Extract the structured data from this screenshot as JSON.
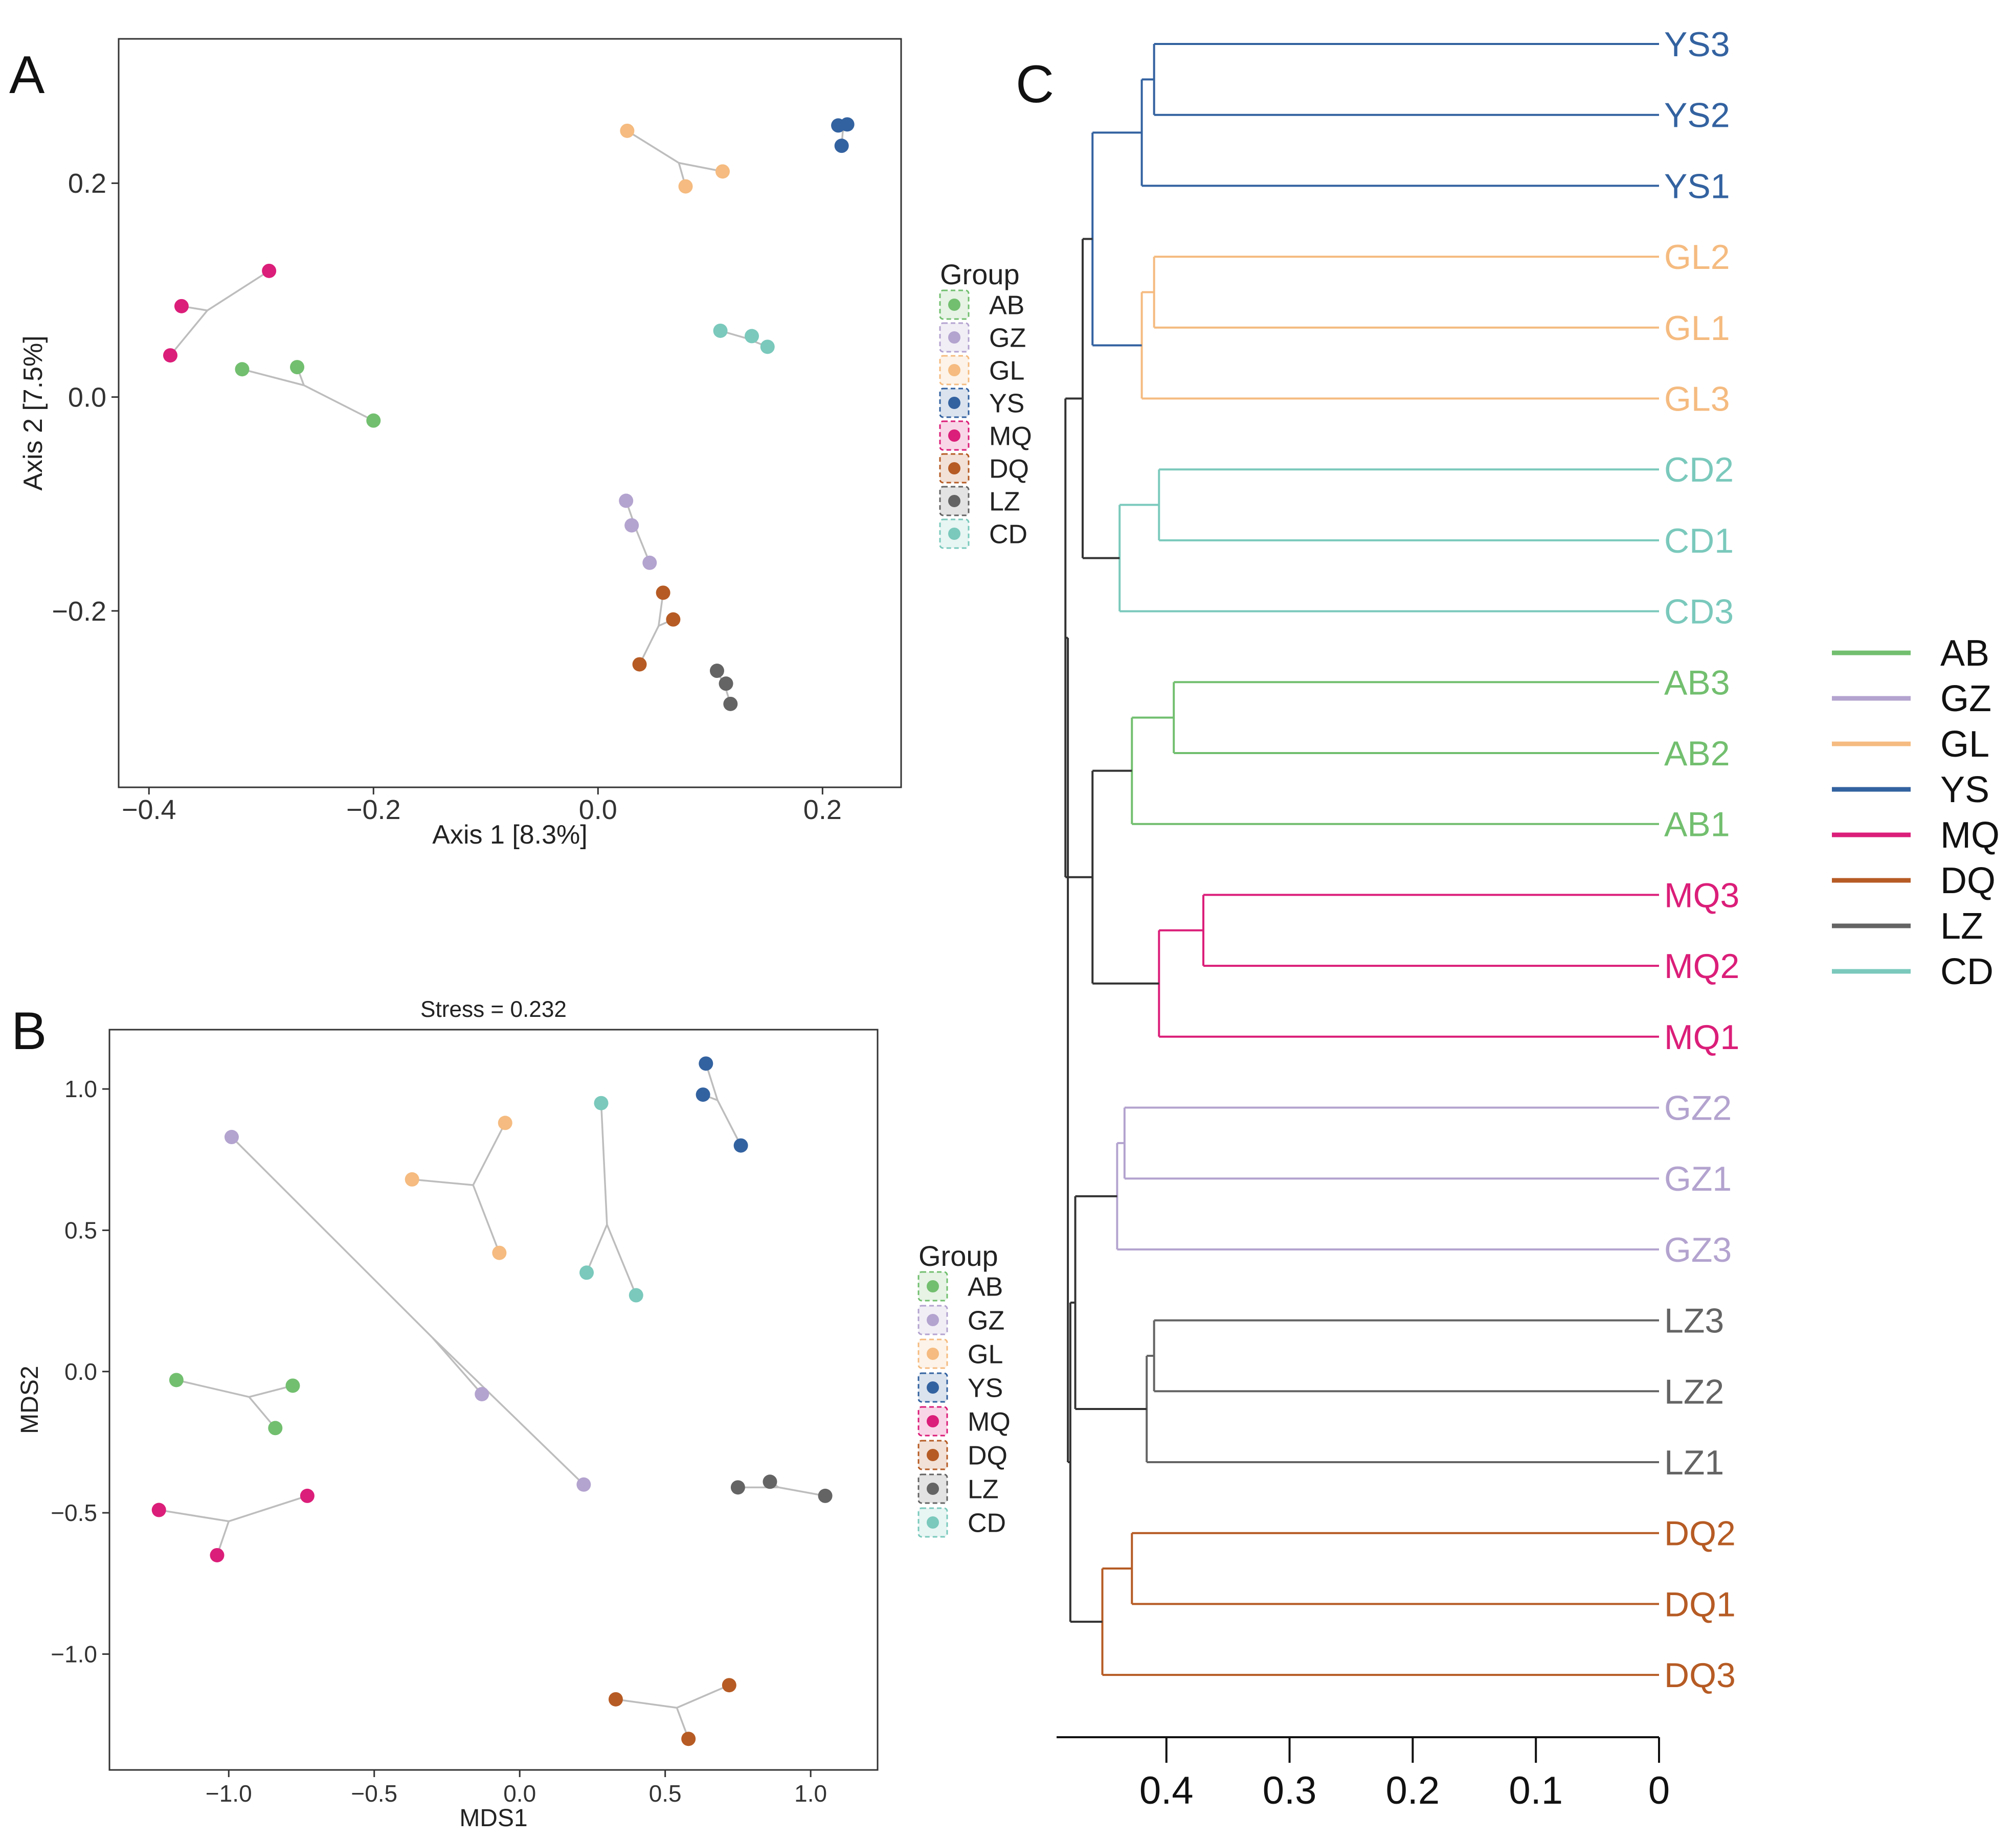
{
  "colors": {
    "AB": "#72bf6f",
    "GZ": "#b3a3cf",
    "GL": "#f5bb80",
    "YS": "#3362a0",
    "MQ": "#db1e79",
    "DQ": "#b65b24",
    "LZ": "#646464",
    "CD": "#7ac9bc",
    "spider": "#bdbdbd",
    "axis": "#333333"
  },
  "chart_data": [
    {
      "panel": "A",
      "type": "scatter",
      "xlabel": "Axis 1 [8.3%]",
      "ylabel": "Axis 2 [7.5%]",
      "xlim": [
        -0.427,
        0.27
      ],
      "ylim": [
        -0.365,
        0.335
      ],
      "xticks": [
        -0.4,
        -0.2,
        0.0,
        0.2
      ],
      "xtick_labels": [
        "−0.4",
        "−0.2",
        "0.0",
        "0.2"
      ],
      "yticks": [
        -0.2,
        0.0,
        0.2
      ],
      "ytick_labels": [
        "−0.2",
        "0.0",
        "0.2"
      ],
      "legend_title": "Group",
      "legend": [
        "AB",
        "GZ",
        "GL",
        "YS",
        "MQ",
        "DQ",
        "LZ",
        "CD"
      ],
      "series": [
        {
          "name": "GL",
          "points": [
            [
              0.026,
              0.249
            ],
            [
              0.111,
              0.211
            ],
            [
              0.078,
              0.197
            ]
          ],
          "centroid": [
            0.072,
            0.219
          ]
        },
        {
          "name": "YS",
          "points": [
            [
              0.214,
              0.254
            ],
            [
              0.222,
              0.255
            ],
            [
              0.217,
              0.235
            ]
          ],
          "centroid": [
            0.218,
            0.248
          ]
        },
        {
          "name": "MQ",
          "points": [
            [
              -0.293,
              0.118
            ],
            [
              -0.371,
              0.085
            ],
            [
              -0.381,
              0.039
            ]
          ],
          "centroid": [
            -0.348,
            0.081
          ]
        },
        {
          "name": "AB",
          "points": [
            [
              -0.317,
              0.026
            ],
            [
              -0.268,
              0.028
            ],
            [
              -0.2,
              -0.022
            ]
          ],
          "centroid": [
            -0.262,
            0.011
          ]
        },
        {
          "name": "CD",
          "points": [
            [
              0.109,
              0.062
            ],
            [
              0.137,
              0.057
            ],
            [
              0.151,
              0.047
            ]
          ],
          "centroid": [
            0.132,
            0.055
          ]
        },
        {
          "name": "GZ",
          "points": [
            [
              0.025,
              -0.097
            ],
            [
              0.03,
              -0.12
            ],
            [
              0.046,
              -0.155
            ]
          ],
          "centroid": [
            0.034,
            -0.124
          ]
        },
        {
          "name": "DQ",
          "points": [
            [
              0.058,
              -0.183
            ],
            [
              0.067,
              -0.208
            ],
            [
              0.037,
              -0.25
            ]
          ],
          "centroid": [
            0.054,
            -0.214
          ]
        },
        {
          "name": "LZ",
          "points": [
            [
              0.106,
              -0.256
            ],
            [
              0.114,
              -0.268
            ],
            [
              0.118,
              -0.287
            ]
          ],
          "centroid": [
            0.113,
            -0.27
          ]
        }
      ]
    },
    {
      "panel": "B",
      "type": "scatter",
      "title": "Stress = 0.232",
      "xlabel": "MDS1",
      "ylabel": "MDS2",
      "xlim": [
        -1.41,
        1.23
      ],
      "ylim": [
        -1.41,
        1.21
      ],
      "xticks": [
        -1.0,
        -0.5,
        0.0,
        0.5,
        1.0
      ],
      "xtick_labels": [
        "−1.0",
        "−0.5",
        "0.0",
        "0.5",
        "1.0"
      ],
      "yticks": [
        -1.0,
        -0.5,
        0.0,
        0.5,
        1.0
      ],
      "ytick_labels": [
        "−1.0",
        "−0.5",
        "0.0",
        "0.5",
        "1.0"
      ],
      "legend_title": "Group",
      "legend": [
        "AB",
        "GZ",
        "GL",
        "YS",
        "MQ",
        "DQ",
        "LZ",
        "CD"
      ],
      "series": [
        {
          "name": "YS",
          "points": [
            [
              0.64,
              1.09
            ],
            [
              0.63,
              0.98
            ],
            [
              0.76,
              0.8
            ]
          ],
          "centroid": [
            0.68,
            0.96
          ]
        },
        {
          "name": "CD",
          "points": [
            [
              0.28,
              0.95
            ],
            [
              0.23,
              0.35
            ],
            [
              0.4,
              0.27
            ]
          ],
          "centroid": [
            0.3,
            0.52
          ]
        },
        {
          "name": "GL",
          "points": [
            [
              -0.05,
              0.88
            ],
            [
              -0.37,
              0.68
            ],
            [
              -0.07,
              0.42
            ]
          ],
          "centroid": [
            -0.16,
            0.66
          ]
        },
        {
          "name": "GZ",
          "points": [
            [
              -0.99,
              0.83
            ],
            [
              -0.13,
              -0.08
            ],
            [
              0.22,
              -0.4
            ]
          ],
          "centroid": [
            -0.3,
            0.12
          ]
        },
        {
          "name": "AB",
          "points": [
            [
              -1.18,
              -0.03
            ],
            [
              -0.78,
              -0.05
            ],
            [
              -0.84,
              -0.2
            ]
          ],
          "centroid": [
            -0.93,
            -0.09
          ]
        },
        {
          "name": "MQ",
          "points": [
            [
              -1.24,
              -0.49
            ],
            [
              -0.73,
              -0.44
            ],
            [
              -1.04,
              -0.65
            ]
          ],
          "centroid": [
            -1.0,
            -0.53
          ]
        },
        {
          "name": "LZ",
          "points": [
            [
              0.75,
              -0.41
            ],
            [
              0.86,
              -0.39
            ],
            [
              1.05,
              -0.44
            ]
          ],
          "centroid": [
            0.89,
            -0.41
          ]
        },
        {
          "name": "DQ",
          "points": [
            [
              0.33,
              -1.16
            ],
            [
              0.72,
              -1.11
            ],
            [
              0.58,
              -1.3
            ]
          ],
          "centroid": [
            0.54,
            -1.19
          ]
        }
      ]
    },
    {
      "panel": "C",
      "type": "dendrogram",
      "xlim": [
        0.49,
        0.0
      ],
      "xticks": [
        0.4,
        0.3,
        0.2,
        0.1,
        0
      ],
      "xtick_labels": [
        "0.4",
        "0.3",
        "0.2",
        "0.1",
        "0"
      ],
      "leaves": [
        "YS3",
        "YS2",
        "YS1",
        "GL2",
        "GL1",
        "GL3",
        "CD2",
        "CD1",
        "CD3",
        "AB3",
        "AB2",
        "AB1",
        "MQ3",
        "MQ2",
        "MQ1",
        "GZ2",
        "GZ1",
        "GZ3",
        "LZ3",
        "LZ2",
        "LZ1",
        "DQ2",
        "DQ1",
        "DQ3"
      ],
      "leaf_groups": [
        "YS",
        "YS",
        "YS",
        "GL",
        "GL",
        "GL",
        "CD",
        "CD",
        "CD",
        "AB",
        "AB",
        "AB",
        "MQ",
        "MQ",
        "MQ",
        "GZ",
        "GZ",
        "GZ",
        "LZ",
        "LZ",
        "LZ",
        "DQ",
        "DQ",
        "DQ"
      ],
      "merges": [
        {
          "a": "YS3",
          "b": "YS2",
          "height": 0.41,
          "id": "y1",
          "color": "YS"
        },
        {
          "a": "y1",
          "b": "YS1",
          "height": 0.42,
          "id": "Y",
          "color": "YS"
        },
        {
          "a": "GL2",
          "b": "GL1",
          "height": 0.41,
          "id": "g1",
          "color": "GL"
        },
        {
          "a": "g1",
          "b": "GL3",
          "height": 0.42,
          "id": "G",
          "color": "GL"
        },
        {
          "a": "Y",
          "b": "G",
          "height": 0.46,
          "id": "YG",
          "color": "YS"
        },
        {
          "a": "CD2",
          "b": "CD1",
          "height": 0.406,
          "id": "c1",
          "color": "CD"
        },
        {
          "a": "c1",
          "b": "CD3",
          "height": 0.438,
          "id": "C",
          "color": "CD"
        },
        {
          "a": "YG",
          "b": "C",
          "height": 0.468,
          "id": "YGC",
          "color": "axis"
        },
        {
          "a": "AB3",
          "b": "AB2",
          "height": 0.394,
          "id": "a1",
          "color": "AB"
        },
        {
          "a": "a1",
          "b": "AB1",
          "height": 0.428,
          "id": "A",
          "color": "AB"
        },
        {
          "a": "MQ3",
          "b": "MQ2",
          "height": 0.37,
          "id": "m1",
          "color": "MQ"
        },
        {
          "a": "m1",
          "b": "MQ1",
          "height": 0.406,
          "id": "M",
          "color": "MQ"
        },
        {
          "a": "A",
          "b": "M",
          "height": 0.46,
          "id": "AM",
          "color": "axis"
        },
        {
          "a": "YGC",
          "b": "AM",
          "height": 0.482,
          "id": "Up",
          "color": "axis"
        },
        {
          "a": "GZ2",
          "b": "GZ1",
          "height": 0.434,
          "id": "z1",
          "color": "GZ"
        },
        {
          "a": "z1",
          "b": "GZ3",
          "height": 0.44,
          "id": "Z",
          "color": "GZ"
        },
        {
          "a": "LZ3",
          "b": "LZ2",
          "height": 0.41,
          "id": "l1",
          "color": "LZ"
        },
        {
          "a": "l1",
          "b": "LZ1",
          "height": 0.416,
          "id": "L",
          "color": "LZ"
        },
        {
          "a": "Z",
          "b": "L",
          "height": 0.474,
          "id": "ZL",
          "color": "axis"
        },
        {
          "a": "DQ2",
          "b": "DQ1",
          "height": 0.428,
          "id": "d1",
          "color": "DQ"
        },
        {
          "a": "d1",
          "b": "DQ3",
          "height": 0.452,
          "id": "D",
          "color": "DQ"
        },
        {
          "a": "ZL",
          "b": "D",
          "height": 0.478,
          "id": "ZLD",
          "color": "axis"
        },
        {
          "a": "Up",
          "b": "ZLD",
          "height": 0.48,
          "id": "root",
          "color": "axis"
        }
      ],
      "legend": [
        "AB",
        "GZ",
        "GL",
        "YS",
        "MQ",
        "DQ",
        "LZ",
        "CD"
      ]
    }
  ],
  "panel_labels": {
    "A": "A",
    "B": "B",
    "C": "C"
  }
}
